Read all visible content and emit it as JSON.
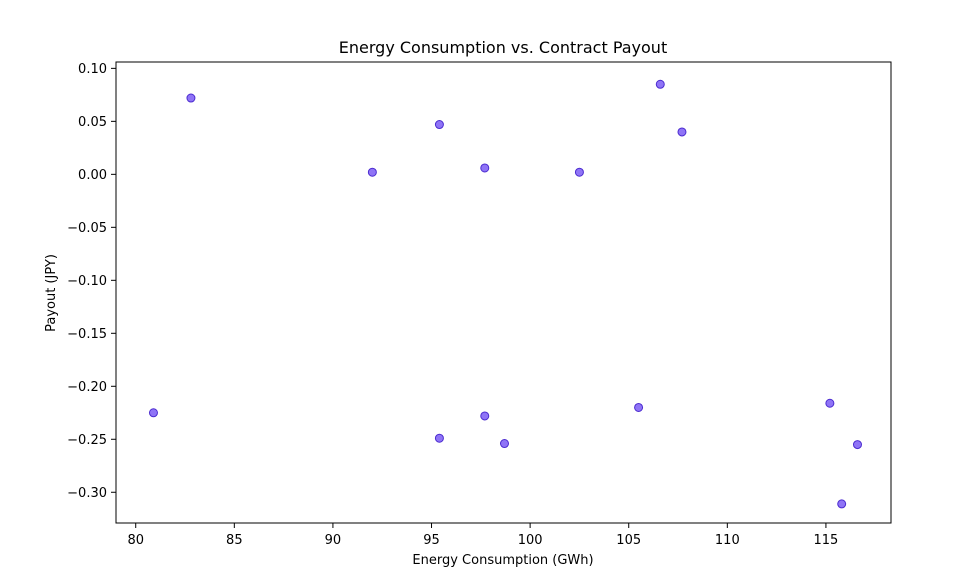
{
  "chart_data": {
    "type": "scatter",
    "title": "Energy Consumption vs. Contract Payout",
    "xlabel": "Energy Consumption (GWh)",
    "ylabel": "Payout (JPY)",
    "xlim": [
      79,
      118.3
    ],
    "ylim": [
      -0.329,
      0.106
    ],
    "xticks": [
      80,
      85,
      90,
      95,
      100,
      105,
      110,
      115
    ],
    "yticks": [
      0.1,
      0.05,
      0.0,
      -0.05,
      -0.1,
      -0.15,
      -0.2,
      -0.25,
      -0.3
    ],
    "ytick_labels": [
      "0.10",
      "0.05",
      "0.00",
      "−0.05",
      "−0.10",
      "−0.15",
      "−0.20",
      "−0.25",
      "−0.30"
    ],
    "grid": false,
    "point_color": "#7b5cf5",
    "point_edge_color": "#4b2bd0",
    "points": [
      {
        "x": 80.9,
        "y": -0.225
      },
      {
        "x": 82.8,
        "y": 0.072
      },
      {
        "x": 92.0,
        "y": 0.002
      },
      {
        "x": 95.4,
        "y": 0.047
      },
      {
        "x": 95.4,
        "y": -0.249
      },
      {
        "x": 97.7,
        "y": 0.006
      },
      {
        "x": 97.7,
        "y": -0.228
      },
      {
        "x": 98.7,
        "y": -0.254
      },
      {
        "x": 102.5,
        "y": 0.002
      },
      {
        "x": 105.5,
        "y": -0.22
      },
      {
        "x": 106.6,
        "y": 0.085
      },
      {
        "x": 107.7,
        "y": 0.04
      },
      {
        "x": 115.2,
        "y": -0.216
      },
      {
        "x": 115.8,
        "y": -0.311
      },
      {
        "x": 116.6,
        "y": -0.255
      }
    ]
  }
}
